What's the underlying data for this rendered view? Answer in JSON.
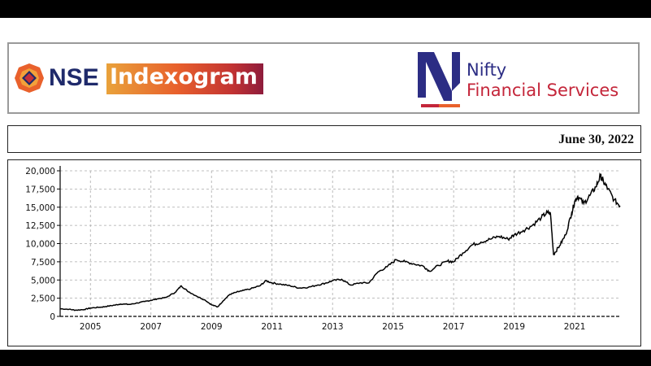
{
  "header": {
    "nse": "NSE",
    "indexogram": "Indexogram",
    "index_line1": "Nifty",
    "index_line2": "Financial Services",
    "colors": {
      "nse_blue": "#1f2a6b",
      "nifty_blue": "#2c2d84",
      "nifty_red": "#c4263a"
    }
  },
  "date": "June 30, 2022",
  "chart_data": {
    "type": "line",
    "title": "",
    "xlabel": "",
    "ylabel": "",
    "ylim": [
      0,
      20000
    ],
    "xlim": [
      2004.0,
      2022.5
    ],
    "yticks": [
      0,
      2500,
      5000,
      7500,
      10000,
      12500,
      15000,
      17500,
      20000
    ],
    "ytick_labels": [
      "0",
      "2,500",
      "5,000",
      "7,500",
      "10,000",
      "12,500",
      "15,000",
      "17,500",
      "20,000"
    ],
    "xticks": [
      2005,
      2007,
      2009,
      2011,
      2013,
      2015,
      2017,
      2019,
      2021
    ],
    "xtick_labels": [
      "2005",
      "2007",
      "2009",
      "2011",
      "2013",
      "2015",
      "2017",
      "2019",
      "2021"
    ],
    "grid": true,
    "series": [
      {
        "x": [
          2004.0,
          2004.3,
          2004.5,
          2004.8,
          2005.0,
          2005.3,
          2005.5,
          2005.8,
          2006.0,
          2006.3,
          2006.5,
          2006.8,
          2007.0,
          2007.2,
          2007.5,
          2007.8,
          2008.0,
          2008.2,
          2008.5,
          2008.8,
          2009.0,
          2009.2,
          2009.4,
          2009.6,
          2009.8,
          2010.0,
          2010.3,
          2010.6,
          2010.8,
          2011.0,
          2011.3,
          2011.6,
          2011.9,
          2012.2,
          2012.5,
          2012.8,
          2013.0,
          2013.3,
          2013.6,
          2013.9,
          2014.2,
          2014.5,
          2014.8,
          2015.1,
          2015.4,
          2015.7,
          2016.0,
          2016.2,
          2016.5,
          2016.8,
          2017.0,
          2017.3,
          2017.6,
          2017.9,
          2018.2,
          2018.5,
          2018.8,
          2019.0,
          2019.3,
          2019.6,
          2019.9,
          2020.1,
          2020.2,
          2020.3,
          2020.5,
          2020.7,
          2020.9,
          2021.0,
          2021.1,
          2021.3,
          2021.5,
          2021.7,
          2021.85,
          2021.95,
          2022.1,
          2022.3,
          2022.5
        ],
        "y": [
          1050,
          980,
          850,
          950,
          1150,
          1250,
          1350,
          1550,
          1700,
          1650,
          1800,
          2050,
          2200,
          2400,
          2600,
          3300,
          4200,
          3500,
          2800,
          2200,
          1600,
          1300,
          2200,
          3000,
          3300,
          3500,
          3800,
          4200,
          4900,
          4600,
          4400,
          4200,
          3900,
          4000,
          4300,
          4600,
          4900,
          5100,
          4300,
          4600,
          4600,
          6100,
          6800,
          7800,
          7500,
          7200,
          6900,
          6200,
          7000,
          7600,
          7500,
          8700,
          9800,
          10200,
          10600,
          11000,
          10600,
          11200,
          11800,
          12500,
          13600,
          14300,
          14100,
          8500,
          9700,
          11200,
          14200,
          15800,
          16500,
          15500,
          16600,
          17800,
          19300,
          18500,
          17500,
          16000,
          15200
        ]
      }
    ]
  }
}
